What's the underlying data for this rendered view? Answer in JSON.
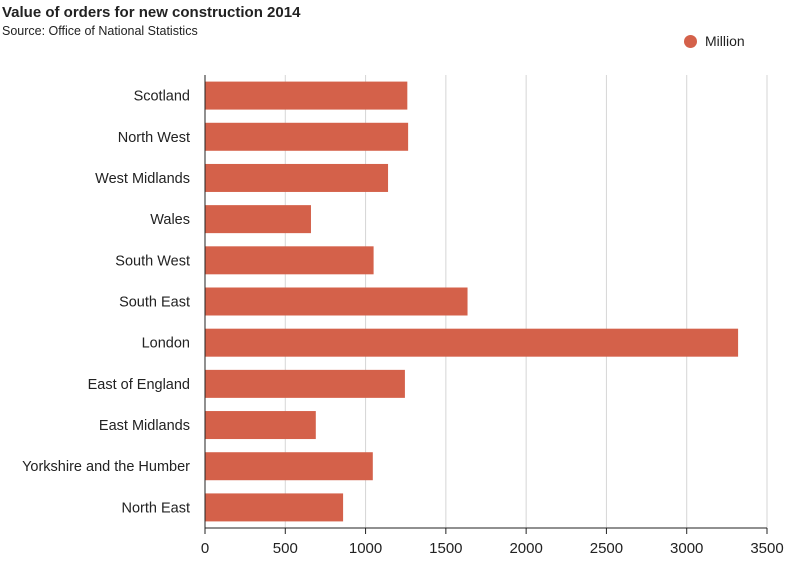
{
  "header": {
    "title": "Value of orders for new construction 2014",
    "subtitle": "Source: Office of National Statistics"
  },
  "legend": {
    "label": "Million",
    "color": "#d4614a"
  },
  "chart_data": {
    "type": "bar",
    "orientation": "horizontal",
    "title": "Value of orders for new construction 2014",
    "subtitle": "Source: Office of National Statistics",
    "categories": [
      "Scotland",
      "North West",
      "West Midlands",
      "Wales",
      "South West",
      "South East",
      "London",
      "East of England",
      "East Midlands",
      "Yorkshire and the Humber",
      "North East"
    ],
    "series": [
      {
        "name": "Million",
        "color": "#d4614a",
        "values": [
          1260,
          1265,
          1140,
          660,
          1050,
          1635,
          3320,
          1245,
          690,
          1045,
          860
        ]
      }
    ],
    "xticks": [
      0,
      500,
      1000,
      1500,
      2000,
      2500,
      3000,
      3500
    ],
    "xlim": [
      0,
      3500
    ],
    "grid": true,
    "legend_position": "top-right"
  }
}
